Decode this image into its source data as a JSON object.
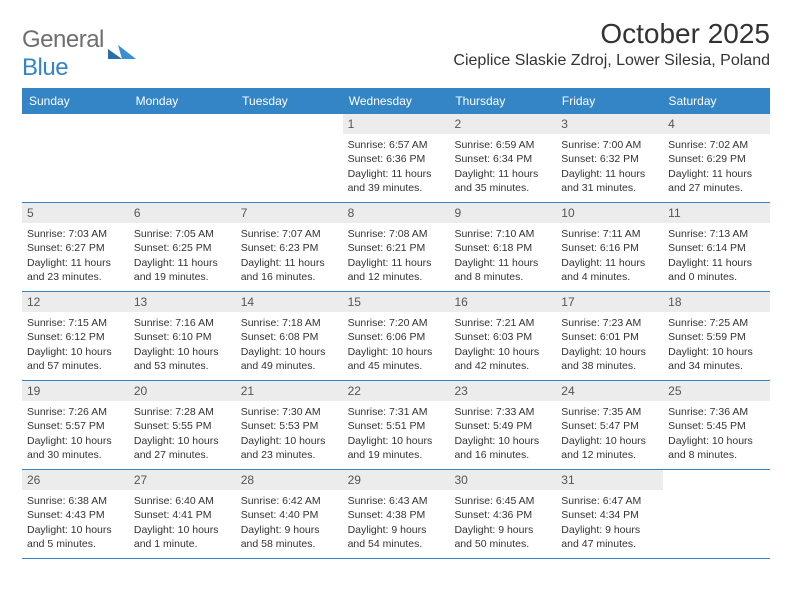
{
  "logo": {
    "word1": "General",
    "word2": "Blue"
  },
  "title": "October 2025",
  "location": "Cieplice Slaskie Zdroj, Lower Silesia, Poland",
  "day_names": [
    "Sunday",
    "Monday",
    "Tuesday",
    "Wednesday",
    "Thursday",
    "Friday",
    "Saturday"
  ],
  "colors": {
    "header_bg": "#3385c6",
    "header_text": "#ffffff",
    "daynum_bg": "#ececec",
    "text": "#333333",
    "logo_gray": "#6f6f6f",
    "logo_blue": "#3385c6",
    "border": "#3385c6"
  },
  "weeks": [
    [
      null,
      null,
      null,
      {
        "n": "1",
        "sr": "Sunrise: 6:57 AM",
        "ss": "Sunset: 6:36 PM",
        "dl": "Daylight: 11 hours and 39 minutes."
      },
      {
        "n": "2",
        "sr": "Sunrise: 6:59 AM",
        "ss": "Sunset: 6:34 PM",
        "dl": "Daylight: 11 hours and 35 minutes."
      },
      {
        "n": "3",
        "sr": "Sunrise: 7:00 AM",
        "ss": "Sunset: 6:32 PM",
        "dl": "Daylight: 11 hours and 31 minutes."
      },
      {
        "n": "4",
        "sr": "Sunrise: 7:02 AM",
        "ss": "Sunset: 6:29 PM",
        "dl": "Daylight: 11 hours and 27 minutes."
      }
    ],
    [
      {
        "n": "5",
        "sr": "Sunrise: 7:03 AM",
        "ss": "Sunset: 6:27 PM",
        "dl": "Daylight: 11 hours and 23 minutes."
      },
      {
        "n": "6",
        "sr": "Sunrise: 7:05 AM",
        "ss": "Sunset: 6:25 PM",
        "dl": "Daylight: 11 hours and 19 minutes."
      },
      {
        "n": "7",
        "sr": "Sunrise: 7:07 AM",
        "ss": "Sunset: 6:23 PM",
        "dl": "Daylight: 11 hours and 16 minutes."
      },
      {
        "n": "8",
        "sr": "Sunrise: 7:08 AM",
        "ss": "Sunset: 6:21 PM",
        "dl": "Daylight: 11 hours and 12 minutes."
      },
      {
        "n": "9",
        "sr": "Sunrise: 7:10 AM",
        "ss": "Sunset: 6:18 PM",
        "dl": "Daylight: 11 hours and 8 minutes."
      },
      {
        "n": "10",
        "sr": "Sunrise: 7:11 AM",
        "ss": "Sunset: 6:16 PM",
        "dl": "Daylight: 11 hours and 4 minutes."
      },
      {
        "n": "11",
        "sr": "Sunrise: 7:13 AM",
        "ss": "Sunset: 6:14 PM",
        "dl": "Daylight: 11 hours and 0 minutes."
      }
    ],
    [
      {
        "n": "12",
        "sr": "Sunrise: 7:15 AM",
        "ss": "Sunset: 6:12 PM",
        "dl": "Daylight: 10 hours and 57 minutes."
      },
      {
        "n": "13",
        "sr": "Sunrise: 7:16 AM",
        "ss": "Sunset: 6:10 PM",
        "dl": "Daylight: 10 hours and 53 minutes."
      },
      {
        "n": "14",
        "sr": "Sunrise: 7:18 AM",
        "ss": "Sunset: 6:08 PM",
        "dl": "Daylight: 10 hours and 49 minutes."
      },
      {
        "n": "15",
        "sr": "Sunrise: 7:20 AM",
        "ss": "Sunset: 6:06 PM",
        "dl": "Daylight: 10 hours and 45 minutes."
      },
      {
        "n": "16",
        "sr": "Sunrise: 7:21 AM",
        "ss": "Sunset: 6:03 PM",
        "dl": "Daylight: 10 hours and 42 minutes."
      },
      {
        "n": "17",
        "sr": "Sunrise: 7:23 AM",
        "ss": "Sunset: 6:01 PM",
        "dl": "Daylight: 10 hours and 38 minutes."
      },
      {
        "n": "18",
        "sr": "Sunrise: 7:25 AM",
        "ss": "Sunset: 5:59 PM",
        "dl": "Daylight: 10 hours and 34 minutes."
      }
    ],
    [
      {
        "n": "19",
        "sr": "Sunrise: 7:26 AM",
        "ss": "Sunset: 5:57 PM",
        "dl": "Daylight: 10 hours and 30 minutes."
      },
      {
        "n": "20",
        "sr": "Sunrise: 7:28 AM",
        "ss": "Sunset: 5:55 PM",
        "dl": "Daylight: 10 hours and 27 minutes."
      },
      {
        "n": "21",
        "sr": "Sunrise: 7:30 AM",
        "ss": "Sunset: 5:53 PM",
        "dl": "Daylight: 10 hours and 23 minutes."
      },
      {
        "n": "22",
        "sr": "Sunrise: 7:31 AM",
        "ss": "Sunset: 5:51 PM",
        "dl": "Daylight: 10 hours and 19 minutes."
      },
      {
        "n": "23",
        "sr": "Sunrise: 7:33 AM",
        "ss": "Sunset: 5:49 PM",
        "dl": "Daylight: 10 hours and 16 minutes."
      },
      {
        "n": "24",
        "sr": "Sunrise: 7:35 AM",
        "ss": "Sunset: 5:47 PM",
        "dl": "Daylight: 10 hours and 12 minutes."
      },
      {
        "n": "25",
        "sr": "Sunrise: 7:36 AM",
        "ss": "Sunset: 5:45 PM",
        "dl": "Daylight: 10 hours and 8 minutes."
      }
    ],
    [
      {
        "n": "26",
        "sr": "Sunrise: 6:38 AM",
        "ss": "Sunset: 4:43 PM",
        "dl": "Daylight: 10 hours and 5 minutes."
      },
      {
        "n": "27",
        "sr": "Sunrise: 6:40 AM",
        "ss": "Sunset: 4:41 PM",
        "dl": "Daylight: 10 hours and 1 minute."
      },
      {
        "n": "28",
        "sr": "Sunrise: 6:42 AM",
        "ss": "Sunset: 4:40 PM",
        "dl": "Daylight: 9 hours and 58 minutes."
      },
      {
        "n": "29",
        "sr": "Sunrise: 6:43 AM",
        "ss": "Sunset: 4:38 PM",
        "dl": "Daylight: 9 hours and 54 minutes."
      },
      {
        "n": "30",
        "sr": "Sunrise: 6:45 AM",
        "ss": "Sunset: 4:36 PM",
        "dl": "Daylight: 9 hours and 50 minutes."
      },
      {
        "n": "31",
        "sr": "Sunrise: 6:47 AM",
        "ss": "Sunset: 4:34 PM",
        "dl": "Daylight: 9 hours and 47 minutes."
      },
      null
    ]
  ]
}
